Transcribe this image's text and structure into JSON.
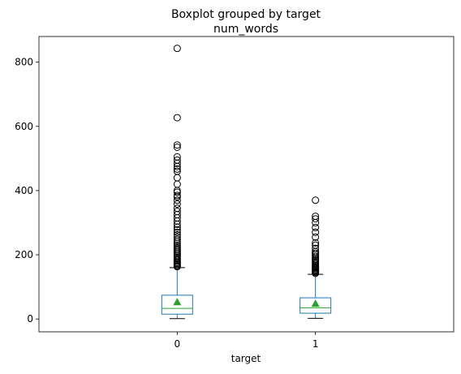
{
  "chart_data": {
    "type": "boxplot",
    "title": "Boxplot grouped by target",
    "subtitle": "num_words",
    "xlabel": "target",
    "ylabel": "",
    "categories": [
      "0",
      "1"
    ],
    "ylim": [
      -40,
      880
    ],
    "yticks": [
      0,
      200,
      400,
      600,
      800
    ],
    "ytick_labels": [
      "0",
      "200",
      "400",
      "600",
      "800"
    ],
    "grid": false,
    "showmeans": true,
    "colors": {
      "box": "#1f77b4",
      "median": "#2ca02c",
      "mean": "#2ca02c",
      "whisker_cap": "#000000",
      "flier": "#000000"
    },
    "boxes": [
      {
        "category": "0",
        "whisker_low": 1,
        "q1": 15,
        "median": 33,
        "mean": 53,
        "q3": 74,
        "whisker_high": 160,
        "fliers": [
          163,
          166,
          170,
          173,
          176,
          180,
          184,
          188,
          192,
          196,
          200,
          205,
          210,
          215,
          220,
          225,
          230,
          236,
          242,
          248,
          255,
          262,
          270,
          278,
          286,
          295,
          305,
          315,
          325,
          335,
          345,
          358,
          370,
          380,
          385,
          395,
          400,
          420,
          440,
          460,
          467,
          475,
          485,
          495,
          505,
          535,
          542,
          627,
          843
        ]
      },
      {
        "category": "1",
        "whisker_low": 2,
        "q1": 18,
        "median": 35,
        "mean": 48,
        "q3": 66,
        "whisker_high": 139,
        "fliers": [
          142,
          145,
          148,
          151,
          154,
          157,
          160,
          163,
          166,
          170,
          174,
          178,
          182,
          186,
          190,
          195,
          200,
          205,
          210,
          220,
          230,
          237,
          255,
          270,
          285,
          300,
          312,
          320,
          370
        ]
      }
    ]
  }
}
